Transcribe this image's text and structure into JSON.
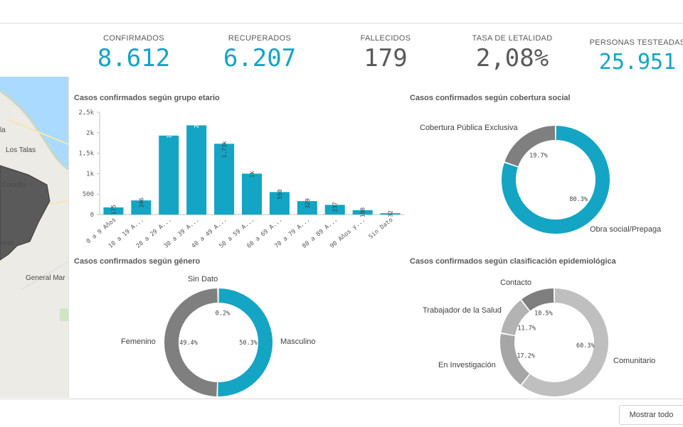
{
  "colors": {
    "accent": "#13a5c3",
    "gray_dark": "#7f7f7f",
    "gray_mid": "#a6a6a6",
    "gray_light": "#bfbfbf",
    "kpi_gray": "#595959"
  },
  "kpis": [
    {
      "title": "CONFIRMADOS",
      "value": "8.612",
      "color": "accent"
    },
    {
      "title": "RECUPERADOS",
      "value": "6.207",
      "color": "accent"
    },
    {
      "title": "FALLECIDOS",
      "value": "179",
      "color": "gray"
    },
    {
      "title": "TASA DE LETALIDAD",
      "value": "2,08%",
      "color": "gray"
    },
    {
      "title": "PERSONAS TESTEADAS",
      "value": "25.951",
      "color": "accent"
    }
  ],
  "map": {
    "labels": [
      "la",
      "Los Talas",
      "Conello",
      "reas",
      "General Mar"
    ]
  },
  "panels": {
    "age_title": "Casos confirmados según grupo etario",
    "coverage_title": "Casos confirmados según cobertura social",
    "gender_title": "Casos confirmados según género",
    "epi_title": "Casos confirmados según clasificación epidemiológica"
  },
  "footer": {
    "show_all_label": "Mostrar todo"
  },
  "chart_data": [
    {
      "type": "bar",
      "title": "Casos confirmados según grupo etario",
      "categories": [
        "0 a 9 Años",
        "10 a 19 A...",
        "20 a 29 A...",
        "30 a 39 A...",
        "40 a 49 A...",
        "50 a 59 A...",
        "60 a 69 A...",
        "70 a 79 A...",
        "80 a 89 A...",
        "90 Años y...",
        "Sin Dato"
      ],
      "values": [
        175,
        346,
        1930,
        2180,
        1730,
        1000,
        550,
        329,
        237,
        108,
        32
      ],
      "value_labels": [
        "175",
        "346",
        "1,93k",
        "2,18k",
        "1,73k",
        "1k",
        "550",
        "329",
        "237",
        "108",
        "32"
      ],
      "yticks": [
        0,
        500,
        1000,
        1500,
        2000,
        2500
      ],
      "ytick_labels": [
        "0",
        "500",
        "1k",
        "1,5k",
        "2k",
        "2,5k"
      ],
      "ylim": [
        0,
        2500
      ],
      "color": "#13a5c3"
    },
    {
      "type": "pie",
      "donut": true,
      "title": "Casos confirmados según cobertura social",
      "slices": [
        {
          "name": "Cobertura Pública Exclusiva",
          "value": 19.7,
          "pct": "19.7%",
          "color": "#7f7f7f"
        },
        {
          "name": "Obra social/Prepaga",
          "value": 80.3,
          "pct": "80.3%",
          "color": "#13a5c3"
        }
      ]
    },
    {
      "type": "pie",
      "donut": true,
      "title": "Casos confirmados según género",
      "slices": [
        {
          "name": "Masculino",
          "value": 50.3,
          "pct": "50.3%",
          "color": "#13a5c3"
        },
        {
          "name": "Femenino",
          "value": 49.4,
          "pct": "49.4%",
          "color": "#7f7f7f"
        },
        {
          "name": "Sin Dato",
          "value": 0.2,
          "pct": "0.2%",
          "color": "#bfbfbf"
        }
      ]
    },
    {
      "type": "pie",
      "donut": true,
      "title": "Casos confirmados según clasificación epidemiológica",
      "slices": [
        {
          "name": "Comunitario",
          "value": 60.3,
          "pct": "60.3%",
          "color": "#bfbfbf"
        },
        {
          "name": "En Investigación",
          "value": 17.2,
          "pct": "17.2%",
          "color": "#a6a6a6"
        },
        {
          "name": "Trabajador de la Salud",
          "value": 11.7,
          "pct": "11.7%",
          "color": "#b3b3b3"
        },
        {
          "name": "Contacto",
          "value": 10.5,
          "pct": "10.5%",
          "color": "#7f7f7f"
        }
      ]
    }
  ]
}
